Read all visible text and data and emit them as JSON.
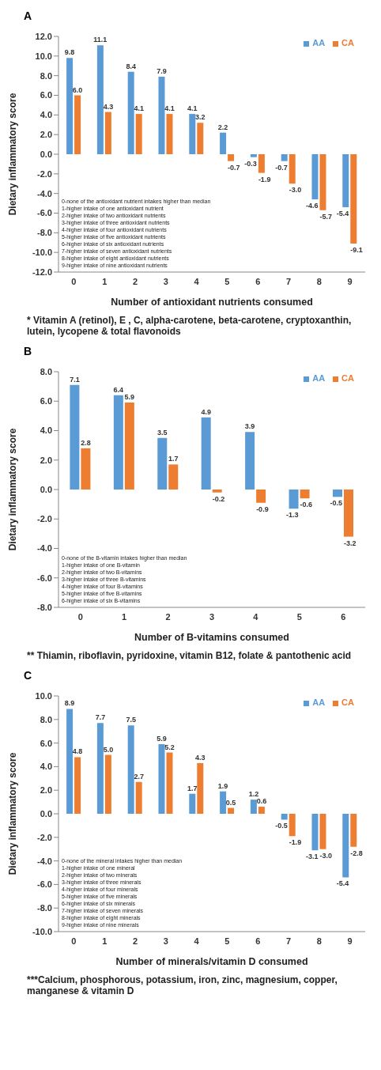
{
  "chart_data": [
    {
      "type": "bar",
      "title": "A",
      "xlabel": "Number of antioxidant nutrients consumed",
      "ylabel": "Dietary inflammatory score",
      "categories": [
        "0",
        "1",
        "2",
        "3",
        "4",
        "5",
        "6",
        "7",
        "8",
        "9"
      ],
      "series": [
        {
          "name": "AA",
          "color": "#5b9bd5",
          "values": [
            9.8,
            11.1,
            8.4,
            7.9,
            4.1,
            2.2,
            -0.3,
            -0.7,
            -4.6,
            -5.4
          ],
          "value_labels": [
            "9.8",
            "11.1",
            "8.4",
            "7.9",
            "4.1",
            "2.2",
            "-0.3",
            "-0.7",
            "-4.6",
            "-5.4"
          ]
        },
        {
          "name": "CA",
          "color": "#ed7d31",
          "values": [
            6.0,
            4.3,
            4.1,
            4.1,
            3.2,
            -0.7,
            -1.9,
            -3.0,
            -5.7,
            -9.1
          ],
          "value_labels": [
            "6.0",
            "4.3",
            "4.1",
            "4.1",
            "3.2",
            "-0.7",
            "-1.9",
            "-3.0",
            "-5.7",
            "-9.1"
          ]
        }
      ],
      "ylim": [
        -12,
        12
      ],
      "yticks": [
        {
          "value": -12,
          "label": "-12.0"
        },
        {
          "value": -10,
          "label": "-10.0"
        },
        {
          "value": -8,
          "label": "-8.0"
        },
        {
          "value": -6,
          "label": "-6.0"
        },
        {
          "value": -4,
          "label": "-4.0"
        },
        {
          "value": -2,
          "label": "-2.0"
        },
        {
          "value": 0,
          "label": "0.0"
        },
        {
          "value": 2,
          "label": "2.0"
        },
        {
          "value": 4,
          "label": "4.0"
        },
        {
          "value": 6,
          "label": "6.0"
        },
        {
          "value": 8,
          "label": "8.0"
        },
        {
          "value": 10,
          "label": "10.0"
        },
        {
          "value": 12,
          "label": "12.0"
        }
      ],
      "grid": false,
      "legend": "top right",
      "annotations": [
        "0-none of the antioxidant nutrient intakes higher than median\n1-higher intake of one antioxidant nutrient\n2-higher intake of two antioxidant nutrients\n3-higher intake of three antioxidant nutrients\n4-higher intake of four antioxidant nutrients\n5-higher intake of five antioxidant nutrients\n6-higher intake of six antioxidant nutrients\n7-higher intake of seven antioxidant nutrients\n8-higher intake of eight antioxidant nutrients\n9-higher intake of nine antioxidant nutrients",
        "* Vitamin A (retinol), E , C, alpha-carotene, beta-carotene, cryptoxanthin, lutein, lycopene & total flavonoids"
      ]
    },
    {
      "type": "bar",
      "title": "B",
      "xlabel": "Number of B-vitamins consumed",
      "ylabel": "Dietary inflammatory score",
      "categories": [
        "0",
        "1",
        "2",
        "3",
        "4",
        "5",
        "6"
      ],
      "series": [
        {
          "name": "AA",
          "color": "#5b9bd5",
          "values": [
            7.1,
            6.4,
            3.5,
            4.9,
            3.9,
            -1.3,
            -0.5
          ],
          "value_labels": [
            "7.1",
            "6.4",
            "3.5",
            "4.9",
            "3.9",
            "-1.3",
            "-0.5"
          ]
        },
        {
          "name": "CA",
          "color": "#ed7d31",
          "values": [
            2.8,
            5.9,
            1.7,
            -0.2,
            -0.9,
            -0.6,
            -3.2
          ],
          "value_labels": [
            "2.8",
            "5.9",
            "1.7",
            "-0.2",
            "-0.9",
            "-0.6",
            "-3.2"
          ]
        }
      ],
      "ylim": [
        -8,
        8
      ],
      "yticks": [
        {
          "value": -8,
          "label": "-8.0"
        },
        {
          "value": -6,
          "label": "-6.0"
        },
        {
          "value": -4,
          "label": "-4.0"
        },
        {
          "value": -2,
          "label": "-2.0"
        },
        {
          "value": 0,
          "label": "0.0"
        },
        {
          "value": 2,
          "label": "2.0"
        },
        {
          "value": 4,
          "label": "4.0"
        },
        {
          "value": 6,
          "label": "6.0"
        },
        {
          "value": 8,
          "label": "8.0"
        }
      ],
      "grid": false,
      "legend": "top right",
      "annotations": [
        "0-none of the B-vitamin intakes higher than median\n1-higher intake of one B-vitamin\n2-higher intake of two B-vitamins\n3-higher intake of three B-vitamins\n4-higher intake of four B-vitamins\n5-higher intake of five B-vitamins\n6-higher intake of six B-vitamins",
        "** Thiamin, riboflavin, pyridoxine, vitamin B12, folate & pantothenic acid"
      ]
    },
    {
      "type": "bar",
      "title": "C",
      "xlabel": "Number of minerals/vitamin  D consumed",
      "ylabel": "Dietary inflammatory score",
      "categories": [
        "0",
        "1",
        "2",
        "3",
        "4",
        "5",
        "6",
        "7",
        "8",
        "9"
      ],
      "series": [
        {
          "name": "AA",
          "color": "#5b9bd5",
          "values": [
            8.9,
            7.7,
            7.5,
            5.9,
            1.7,
            1.9,
            1.2,
            -0.5,
            -3.1,
            -5.4
          ],
          "value_labels": [
            "8.9",
            "7.7",
            "7.5",
            "5.9",
            "1.7",
            "1.9",
            "1.2",
            "-0.5",
            "-3.1",
            "-5.4"
          ]
        },
        {
          "name": "CA",
          "color": "#ed7d31",
          "values": [
            4.8,
            5.0,
            2.7,
            5.2,
            4.3,
            0.5,
            0.6,
            -1.9,
            -3.0,
            -2.8
          ],
          "value_labels": [
            "4.8",
            "5.0",
            "2.7",
            "5.2",
            "4.3",
            "0.5",
            "0.6",
            "-1.9",
            "-3.0",
            "-2.8"
          ]
        }
      ],
      "ylim": [
        -10,
        10
      ],
      "yticks": [
        {
          "value": -10,
          "label": "-10.0"
        },
        {
          "value": -8,
          "label": "-8.0"
        },
        {
          "value": -6,
          "label": "-6.0"
        },
        {
          "value": -4,
          "label": "-4.0"
        },
        {
          "value": -2,
          "label": "-2.0"
        },
        {
          "value": 0,
          "label": "0.0"
        },
        {
          "value": 2,
          "label": "2.0"
        },
        {
          "value": 4,
          "label": "4.0"
        },
        {
          "value": 6,
          "label": "6.0"
        },
        {
          "value": 8,
          "label": "8.0"
        },
        {
          "value": 10,
          "label": "10.0"
        }
      ],
      "grid": false,
      "legend": "top right",
      "annotations": [
        "0-none of the mineral intakes higher than median\n1-higher intake of one mineral\n2-higher intake of two minerals\n3-higher intake of three minerals\n4-higher intake of four minerals\n5-higher intake of five minerals\n6-higher intake of six minerals\n7-higher intake of seven minerals\n8-higher intake of eight minerals\n9-higher intake of nine minerals",
        "***Calcium, phosphorous, potassium, iron, zinc, magnesium, copper, manganese & vitamin D"
      ]
    }
  ]
}
